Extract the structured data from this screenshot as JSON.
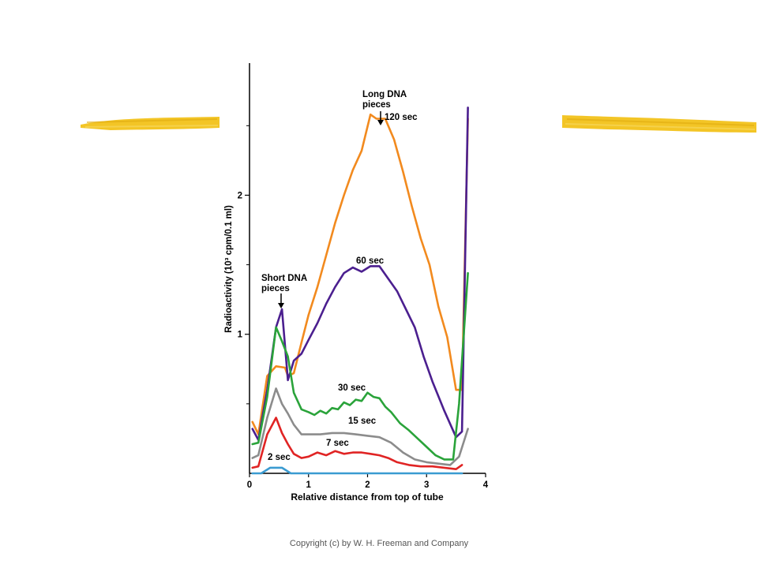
{
  "colors": {
    "highlighter": "#f2c21a",
    "axis": "#000000",
    "series_120": "#f28a1e",
    "series_60": "#4b1f8f",
    "series_30": "#2aa33a",
    "series_15": "#8c8c8c",
    "series_7": "#e02424",
    "series_2": "#3a9bd1"
  },
  "decor": {
    "left_stroke": "highlighter-stroke",
    "right_stroke": "highlighter-stroke"
  },
  "chart_data": {
    "type": "line",
    "xlabel": "Relative distance from top of tube",
    "ylabel": "Radioactivity (10³ cpm/0.1 ml)",
    "xlim": [
      0,
      4
    ],
    "ylim": [
      0,
      2.95
    ],
    "x_ticks": [
      "0",
      "1",
      "2",
      "3",
      "4"
    ],
    "y_ticks": [
      "1",
      "2"
    ],
    "grid": false,
    "annotations": {
      "long": [
        "Long DNA",
        "pieces"
      ],
      "short": [
        "Short DNA",
        "pieces"
      ]
    },
    "series": [
      {
        "name": "120 sec",
        "color_key": "series_120",
        "points": [
          [
            0.05,
            0.37
          ],
          [
            0.15,
            0.28
          ],
          [
            0.3,
            0.7
          ],
          [
            0.45,
            0.77
          ],
          [
            0.6,
            0.76
          ],
          [
            0.65,
            0.7
          ],
          [
            0.75,
            0.72
          ],
          [
            0.88,
            0.94
          ],
          [
            1.0,
            1.14
          ],
          [
            1.15,
            1.34
          ],
          [
            1.3,
            1.57
          ],
          [
            1.45,
            1.8
          ],
          [
            1.6,
            2.0
          ],
          [
            1.75,
            2.18
          ],
          [
            1.9,
            2.32
          ],
          [
            2.05,
            2.58
          ],
          [
            2.15,
            2.55
          ],
          [
            2.3,
            2.55
          ],
          [
            2.45,
            2.4
          ],
          [
            2.6,
            2.17
          ],
          [
            2.75,
            1.92
          ],
          [
            2.9,
            1.69
          ],
          [
            3.05,
            1.5
          ],
          [
            3.2,
            1.2
          ],
          [
            3.35,
            0.98
          ],
          [
            3.5,
            0.6
          ],
          [
            3.6,
            0.6
          ],
          [
            3.7,
            2.55
          ]
        ]
      },
      {
        "name": "60 sec",
        "color_key": "series_60",
        "points": [
          [
            0.05,
            0.32
          ],
          [
            0.15,
            0.24
          ],
          [
            0.3,
            0.6
          ],
          [
            0.45,
            1.05
          ],
          [
            0.55,
            1.18
          ],
          [
            0.65,
            0.67
          ],
          [
            0.75,
            0.81
          ],
          [
            0.88,
            0.86
          ],
          [
            1.0,
            0.96
          ],
          [
            1.15,
            1.08
          ],
          [
            1.3,
            1.22
          ],
          [
            1.45,
            1.34
          ],
          [
            1.6,
            1.44
          ],
          [
            1.75,
            1.48
          ],
          [
            1.9,
            1.45
          ],
          [
            2.05,
            1.49
          ],
          [
            2.2,
            1.49
          ],
          [
            2.35,
            1.4
          ],
          [
            2.5,
            1.31
          ],
          [
            2.65,
            1.18
          ],
          [
            2.8,
            1.05
          ],
          [
            2.95,
            0.84
          ],
          [
            3.1,
            0.66
          ],
          [
            3.3,
            0.45
          ],
          [
            3.5,
            0.26
          ],
          [
            3.6,
            0.3
          ],
          [
            3.7,
            2.63
          ]
        ]
      },
      {
        "name": "30 sec",
        "color_key": "series_30",
        "points": [
          [
            0.05,
            0.21
          ],
          [
            0.15,
            0.22
          ],
          [
            0.3,
            0.55
          ],
          [
            0.45,
            1.05
          ],
          [
            0.55,
            0.95
          ],
          [
            0.65,
            0.84
          ],
          [
            0.75,
            0.58
          ],
          [
            0.88,
            0.46
          ],
          [
            1.0,
            0.44
          ],
          [
            1.1,
            0.42
          ],
          [
            1.2,
            0.45
          ],
          [
            1.3,
            0.43
          ],
          [
            1.4,
            0.47
          ],
          [
            1.5,
            0.46
          ],
          [
            1.6,
            0.51
          ],
          [
            1.7,
            0.49
          ],
          [
            1.8,
            0.53
          ],
          [
            1.9,
            0.52
          ],
          [
            2.0,
            0.58
          ],
          [
            2.1,
            0.55
          ],
          [
            2.2,
            0.54
          ],
          [
            2.3,
            0.48
          ],
          [
            2.4,
            0.44
          ],
          [
            2.55,
            0.36
          ],
          [
            2.7,
            0.31
          ],
          [
            2.85,
            0.25
          ],
          [
            3.0,
            0.19
          ],
          [
            3.15,
            0.13
          ],
          [
            3.3,
            0.1
          ],
          [
            3.45,
            0.1
          ],
          [
            3.55,
            0.5
          ],
          [
            3.7,
            1.44
          ]
        ]
      },
      {
        "name": "15 sec",
        "color_key": "series_15",
        "points": [
          [
            0.05,
            0.11
          ],
          [
            0.15,
            0.13
          ],
          [
            0.3,
            0.4
          ],
          [
            0.45,
            0.61
          ],
          [
            0.55,
            0.5
          ],
          [
            0.65,
            0.43
          ],
          [
            0.75,
            0.35
          ],
          [
            0.88,
            0.28
          ],
          [
            1.0,
            0.28
          ],
          [
            1.2,
            0.28
          ],
          [
            1.4,
            0.29
          ],
          [
            1.6,
            0.29
          ],
          [
            1.8,
            0.28
          ],
          [
            2.0,
            0.27
          ],
          [
            2.2,
            0.26
          ],
          [
            2.4,
            0.22
          ],
          [
            2.6,
            0.15
          ],
          [
            2.8,
            0.1
          ],
          [
            3.0,
            0.08
          ],
          [
            3.2,
            0.07
          ],
          [
            3.4,
            0.06
          ],
          [
            3.55,
            0.12
          ],
          [
            3.7,
            0.32
          ]
        ]
      },
      {
        "name": "7 sec",
        "color_key": "series_7",
        "points": [
          [
            0.05,
            0.04
          ],
          [
            0.15,
            0.05
          ],
          [
            0.3,
            0.28
          ],
          [
            0.45,
            0.4
          ],
          [
            0.55,
            0.29
          ],
          [
            0.65,
            0.21
          ],
          [
            0.75,
            0.14
          ],
          [
            0.88,
            0.11
          ],
          [
            1.0,
            0.12
          ],
          [
            1.15,
            0.15
          ],
          [
            1.3,
            0.13
          ],
          [
            1.45,
            0.16
          ],
          [
            1.6,
            0.14
          ],
          [
            1.75,
            0.15
          ],
          [
            1.9,
            0.15
          ],
          [
            2.05,
            0.14
          ],
          [
            2.2,
            0.13
          ],
          [
            2.35,
            0.11
          ],
          [
            2.5,
            0.08
          ],
          [
            2.7,
            0.06
          ],
          [
            2.9,
            0.05
          ],
          [
            3.1,
            0.05
          ],
          [
            3.3,
            0.04
          ],
          [
            3.5,
            0.03
          ],
          [
            3.6,
            0.06
          ]
        ]
      },
      {
        "name": "2 sec",
        "color_key": "series_2",
        "points": [
          [
            0.05,
            0.0
          ],
          [
            0.2,
            0.0
          ],
          [
            0.35,
            0.04
          ],
          [
            0.55,
            0.04
          ],
          [
            0.7,
            0.0
          ],
          [
            1.0,
            0.0
          ],
          [
            2.0,
            0.0
          ],
          [
            3.0,
            0.0
          ],
          [
            3.6,
            0.0
          ]
        ]
      }
    ]
  },
  "footer": {
    "copyright": "Copyright (c) by W. H. Freeman and Company"
  }
}
